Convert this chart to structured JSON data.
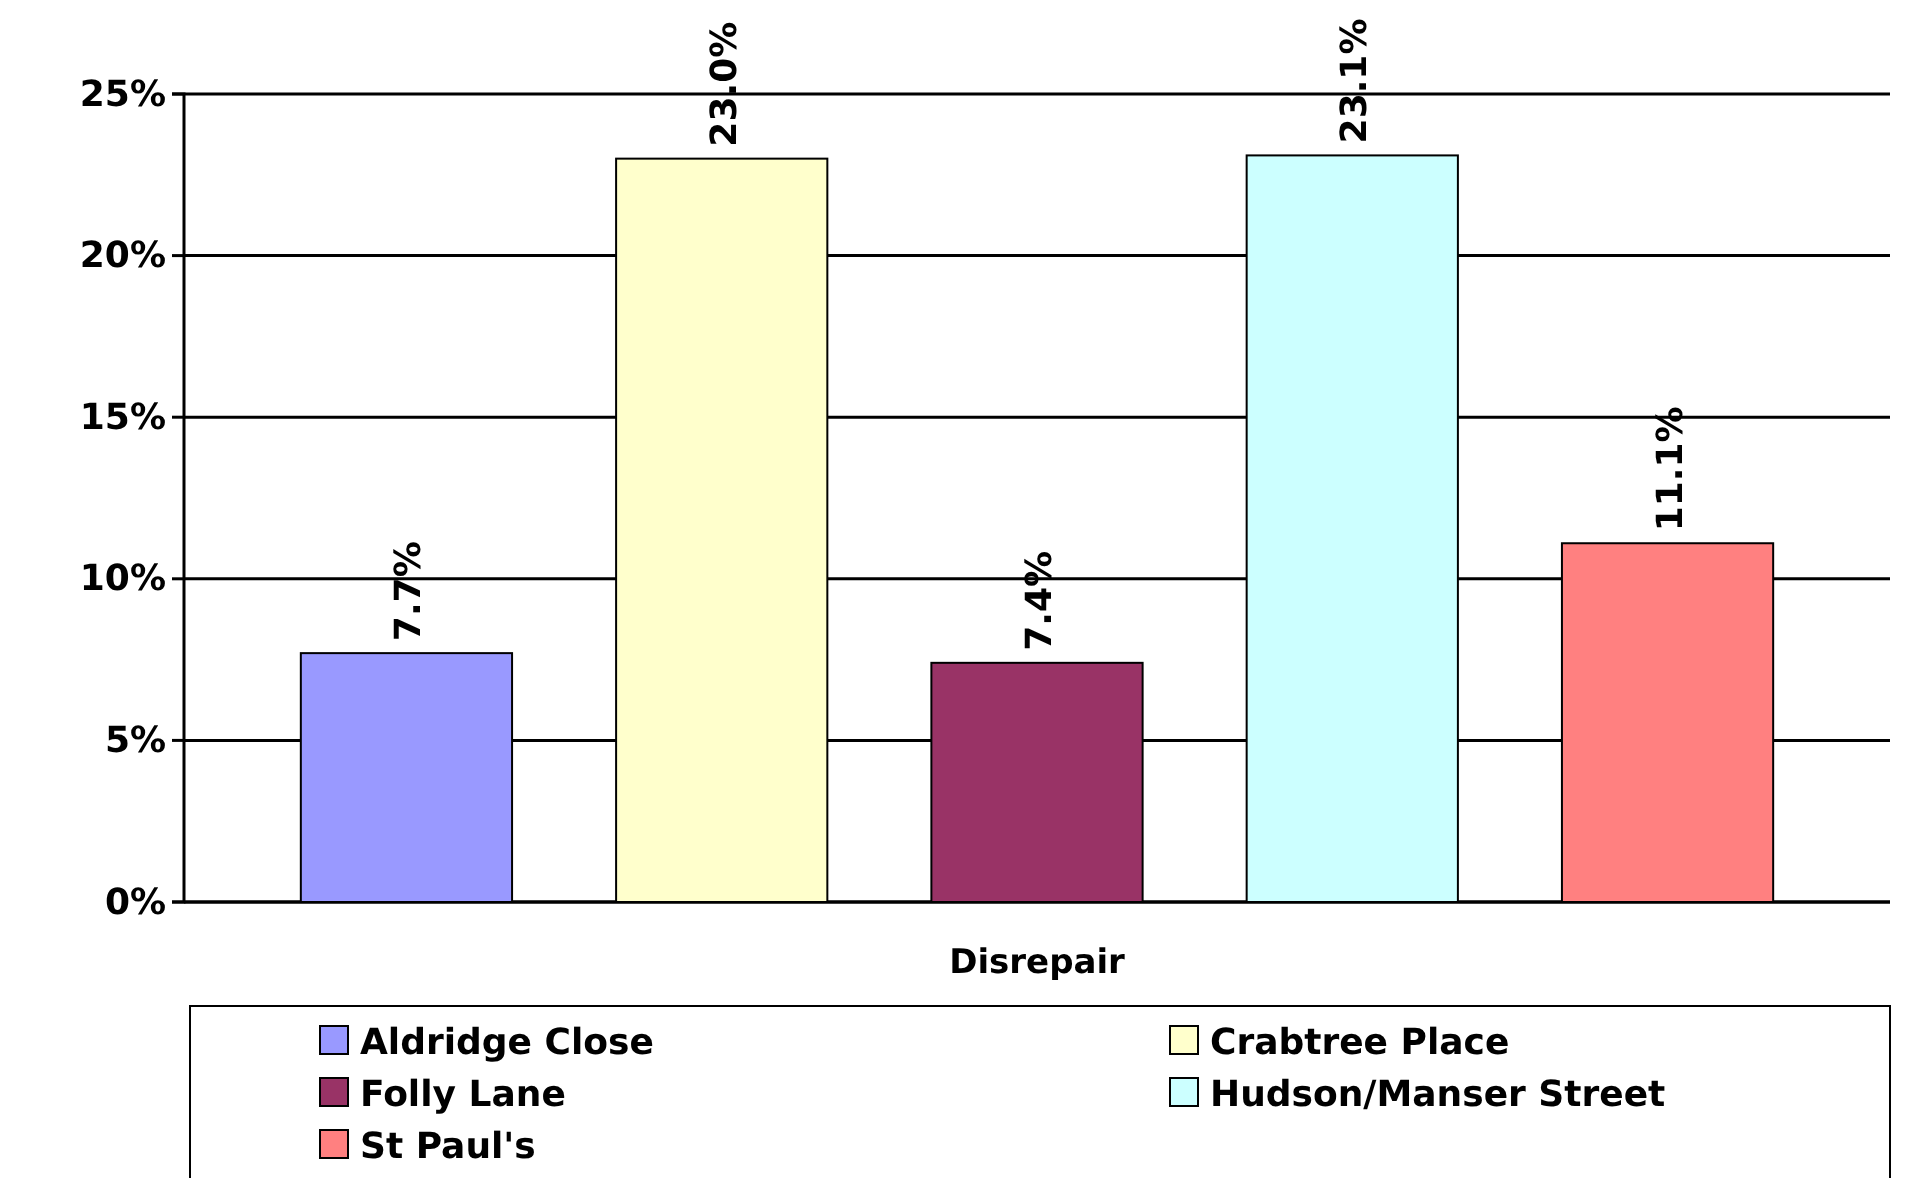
{
  "chart_data": {
    "type": "bar",
    "categories": [
      "Disrepair"
    ],
    "series": [
      {
        "name": "Aldridge Close",
        "color": "#9999ff",
        "values": [
          7.7
        ],
        "value_labels": [
          "7.7%"
        ]
      },
      {
        "name": "Crabtree Place",
        "color": "#ffffcc",
        "values": [
          23.0
        ],
        "value_labels": [
          "23.0%"
        ]
      },
      {
        "name": "Folly Lane",
        "color": "#993366",
        "values": [
          7.4
        ],
        "value_labels": [
          "7.4%"
        ]
      },
      {
        "name": "Hudson/Manser Street",
        "color": "#ccffff",
        "values": [
          23.1
        ],
        "value_labels": [
          "23.1%"
        ]
      },
      {
        "name": "St Paul's",
        "color": "#ff8080",
        "values": [
          11.1
        ],
        "value_labels": [
          "11.1%"
        ]
      }
    ],
    "ylim": [
      0,
      25
    ],
    "yticks": [
      {
        "value": 0,
        "label": "0%"
      },
      {
        "value": 5,
        "label": "5%"
      },
      {
        "value": 10,
        "label": "10%"
      },
      {
        "value": 15,
        "label": "15%"
      },
      {
        "value": 20,
        "label": "20%"
      },
      {
        "value": 25,
        "label": "25%"
      }
    ],
    "grid": "y",
    "legend": "bottom"
  }
}
